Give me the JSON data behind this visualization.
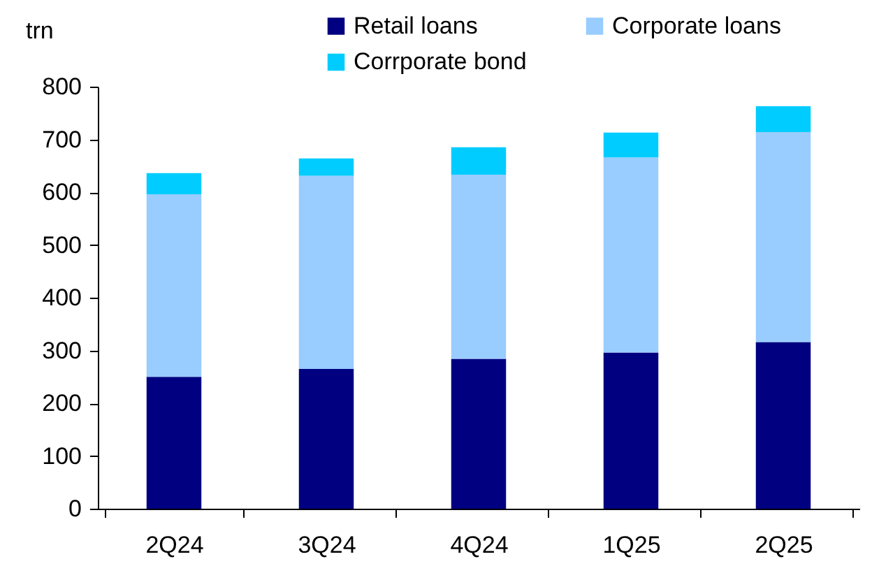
{
  "chart_data": {
    "type": "bar",
    "stacked": true,
    "ylabel": "trn",
    "categories": [
      "2Q24",
      "3Q24",
      "4Q24",
      "1Q25",
      "2Q25"
    ],
    "series": [
      {
        "name": "Retail loans",
        "color": "#000080",
        "values": [
          250,
          265,
          284,
          296,
          316
        ]
      },
      {
        "name": "Corporate loans",
        "color": "#99ccff",
        "values": [
          346,
          366,
          349,
          370,
          398
        ]
      },
      {
        "name": "Corrporate bond",
        "color": "#00ccff",
        "values": [
          40,
          33,
          52,
          47,
          49
        ]
      }
    ],
    "ylim": [
      0,
      800
    ],
    "yticks": [
      0,
      100,
      200,
      300,
      400,
      500,
      600,
      700,
      800
    ],
    "grid": false,
    "legend": "top"
  }
}
